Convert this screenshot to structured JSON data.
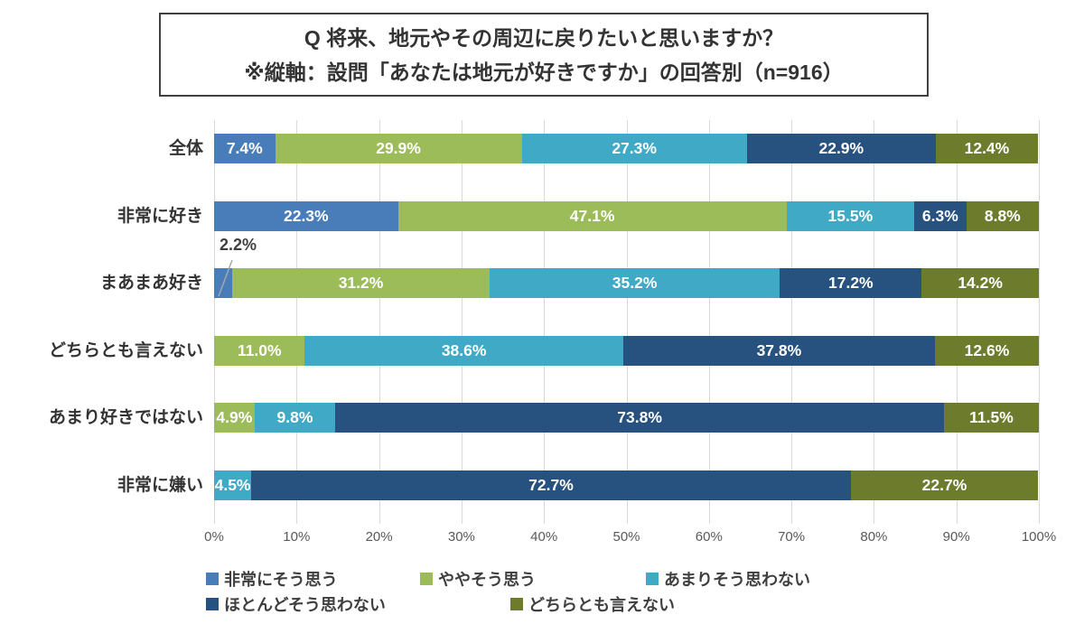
{
  "title": {
    "line1": "Q 将来、地元やその周辺に戻りたいと思いますか？",
    "line2": "※縦軸：設問「あなたは地元が好きですか」の回答別（n=916）"
  },
  "chart_data": {
    "type": "bar",
    "orientation": "horizontal",
    "stacked": true,
    "n": 916,
    "categories": [
      "全体",
      "非常に好き",
      "まあまあ好き",
      "どちらとも言えない",
      "あまり好きではない",
      "非常に嫌い"
    ],
    "series": [
      {
        "name": "非常にそう思う",
        "color": "#497DBA",
        "values": [
          7.4,
          22.3,
          2.2,
          0,
          0,
          0
        ]
      },
      {
        "name": "ややそう思う",
        "color": "#9CBB59",
        "values": [
          29.9,
          47.1,
          31.2,
          11.0,
          4.9,
          0
        ]
      },
      {
        "name": "あまりそう思わない",
        "color": "#40A9C5",
        "values": [
          27.3,
          15.5,
          35.2,
          38.6,
          9.8,
          4.5
        ]
      },
      {
        "name": "ほとんどそう思わない",
        "color": "#27517E",
        "values": [
          22.9,
          6.3,
          17.2,
          37.8,
          73.8,
          72.7
        ]
      },
      {
        "name": "どちらとも言えない",
        "color": "#6D7B2D",
        "values": [
          12.4,
          8.8,
          14.2,
          12.6,
          11.5,
          22.7
        ]
      }
    ],
    "x_ticks": [
      "0%",
      "10%",
      "20%",
      "30%",
      "40%",
      "50%",
      "60%",
      "70%",
      "80%",
      "90%",
      "100%"
    ],
    "xlim": [
      0,
      100
    ],
    "grid": true,
    "legend_position": "bottom",
    "data_label_format": "{value}%",
    "outside_label": {
      "category_index": 2,
      "series_index": 0,
      "text": "2.2%"
    }
  }
}
